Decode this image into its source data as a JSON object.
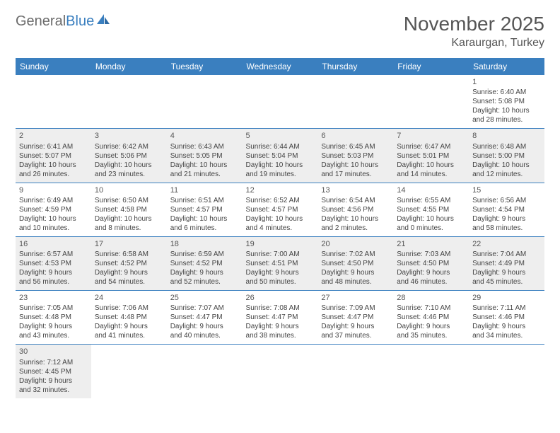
{
  "logo": {
    "part1": "General",
    "part2": "Blue"
  },
  "title": "November 2025",
  "location": "Karaurgan, Turkey",
  "header_bg": "#3a7fbf",
  "shade_bg": "#eeeeee",
  "days": [
    "Sunday",
    "Monday",
    "Tuesday",
    "Wednesday",
    "Thursday",
    "Friday",
    "Saturday"
  ],
  "weeks": [
    [
      null,
      null,
      null,
      null,
      null,
      null,
      {
        "n": "1",
        "sr": "Sunrise: 6:40 AM",
        "ss": "Sunset: 5:08 PM",
        "d1": "Daylight: 10 hours",
        "d2": "and 28 minutes."
      }
    ],
    [
      {
        "n": "2",
        "sr": "Sunrise: 6:41 AM",
        "ss": "Sunset: 5:07 PM",
        "d1": "Daylight: 10 hours",
        "d2": "and 26 minutes."
      },
      {
        "n": "3",
        "sr": "Sunrise: 6:42 AM",
        "ss": "Sunset: 5:06 PM",
        "d1": "Daylight: 10 hours",
        "d2": "and 23 minutes."
      },
      {
        "n": "4",
        "sr": "Sunrise: 6:43 AM",
        "ss": "Sunset: 5:05 PM",
        "d1": "Daylight: 10 hours",
        "d2": "and 21 minutes."
      },
      {
        "n": "5",
        "sr": "Sunrise: 6:44 AM",
        "ss": "Sunset: 5:04 PM",
        "d1": "Daylight: 10 hours",
        "d2": "and 19 minutes."
      },
      {
        "n": "6",
        "sr": "Sunrise: 6:45 AM",
        "ss": "Sunset: 5:03 PM",
        "d1": "Daylight: 10 hours",
        "d2": "and 17 minutes."
      },
      {
        "n": "7",
        "sr": "Sunrise: 6:47 AM",
        "ss": "Sunset: 5:01 PM",
        "d1": "Daylight: 10 hours",
        "d2": "and 14 minutes."
      },
      {
        "n": "8",
        "sr": "Sunrise: 6:48 AM",
        "ss": "Sunset: 5:00 PM",
        "d1": "Daylight: 10 hours",
        "d2": "and 12 minutes."
      }
    ],
    [
      {
        "n": "9",
        "sr": "Sunrise: 6:49 AM",
        "ss": "Sunset: 4:59 PM",
        "d1": "Daylight: 10 hours",
        "d2": "and 10 minutes."
      },
      {
        "n": "10",
        "sr": "Sunrise: 6:50 AM",
        "ss": "Sunset: 4:58 PM",
        "d1": "Daylight: 10 hours",
        "d2": "and 8 minutes."
      },
      {
        "n": "11",
        "sr": "Sunrise: 6:51 AM",
        "ss": "Sunset: 4:57 PM",
        "d1": "Daylight: 10 hours",
        "d2": "and 6 minutes."
      },
      {
        "n": "12",
        "sr": "Sunrise: 6:52 AM",
        "ss": "Sunset: 4:57 PM",
        "d1": "Daylight: 10 hours",
        "d2": "and 4 minutes."
      },
      {
        "n": "13",
        "sr": "Sunrise: 6:54 AM",
        "ss": "Sunset: 4:56 PM",
        "d1": "Daylight: 10 hours",
        "d2": "and 2 minutes."
      },
      {
        "n": "14",
        "sr": "Sunrise: 6:55 AM",
        "ss": "Sunset: 4:55 PM",
        "d1": "Daylight: 10 hours",
        "d2": "and 0 minutes."
      },
      {
        "n": "15",
        "sr": "Sunrise: 6:56 AM",
        "ss": "Sunset: 4:54 PM",
        "d1": "Daylight: 9 hours",
        "d2": "and 58 minutes."
      }
    ],
    [
      {
        "n": "16",
        "sr": "Sunrise: 6:57 AM",
        "ss": "Sunset: 4:53 PM",
        "d1": "Daylight: 9 hours",
        "d2": "and 56 minutes."
      },
      {
        "n": "17",
        "sr": "Sunrise: 6:58 AM",
        "ss": "Sunset: 4:52 PM",
        "d1": "Daylight: 9 hours",
        "d2": "and 54 minutes."
      },
      {
        "n": "18",
        "sr": "Sunrise: 6:59 AM",
        "ss": "Sunset: 4:52 PM",
        "d1": "Daylight: 9 hours",
        "d2": "and 52 minutes."
      },
      {
        "n": "19",
        "sr": "Sunrise: 7:00 AM",
        "ss": "Sunset: 4:51 PM",
        "d1": "Daylight: 9 hours",
        "d2": "and 50 minutes."
      },
      {
        "n": "20",
        "sr": "Sunrise: 7:02 AM",
        "ss": "Sunset: 4:50 PM",
        "d1": "Daylight: 9 hours",
        "d2": "and 48 minutes."
      },
      {
        "n": "21",
        "sr": "Sunrise: 7:03 AM",
        "ss": "Sunset: 4:50 PM",
        "d1": "Daylight: 9 hours",
        "d2": "and 46 minutes."
      },
      {
        "n": "22",
        "sr": "Sunrise: 7:04 AM",
        "ss": "Sunset: 4:49 PM",
        "d1": "Daylight: 9 hours",
        "d2": "and 45 minutes."
      }
    ],
    [
      {
        "n": "23",
        "sr": "Sunrise: 7:05 AM",
        "ss": "Sunset: 4:48 PM",
        "d1": "Daylight: 9 hours",
        "d2": "and 43 minutes."
      },
      {
        "n": "24",
        "sr": "Sunrise: 7:06 AM",
        "ss": "Sunset: 4:48 PM",
        "d1": "Daylight: 9 hours",
        "d2": "and 41 minutes."
      },
      {
        "n": "25",
        "sr": "Sunrise: 7:07 AM",
        "ss": "Sunset: 4:47 PM",
        "d1": "Daylight: 9 hours",
        "d2": "and 40 minutes."
      },
      {
        "n": "26",
        "sr": "Sunrise: 7:08 AM",
        "ss": "Sunset: 4:47 PM",
        "d1": "Daylight: 9 hours",
        "d2": "and 38 minutes."
      },
      {
        "n": "27",
        "sr": "Sunrise: 7:09 AM",
        "ss": "Sunset: 4:47 PM",
        "d1": "Daylight: 9 hours",
        "d2": "and 37 minutes."
      },
      {
        "n": "28",
        "sr": "Sunrise: 7:10 AM",
        "ss": "Sunset: 4:46 PM",
        "d1": "Daylight: 9 hours",
        "d2": "and 35 minutes."
      },
      {
        "n": "29",
        "sr": "Sunrise: 7:11 AM",
        "ss": "Sunset: 4:46 PM",
        "d1": "Daylight: 9 hours",
        "d2": "and 34 minutes."
      }
    ],
    [
      {
        "n": "30",
        "sr": "Sunrise: 7:12 AM",
        "ss": "Sunset: 4:45 PM",
        "d1": "Daylight: 9 hours",
        "d2": "and 32 minutes."
      },
      null,
      null,
      null,
      null,
      null,
      null
    ]
  ]
}
